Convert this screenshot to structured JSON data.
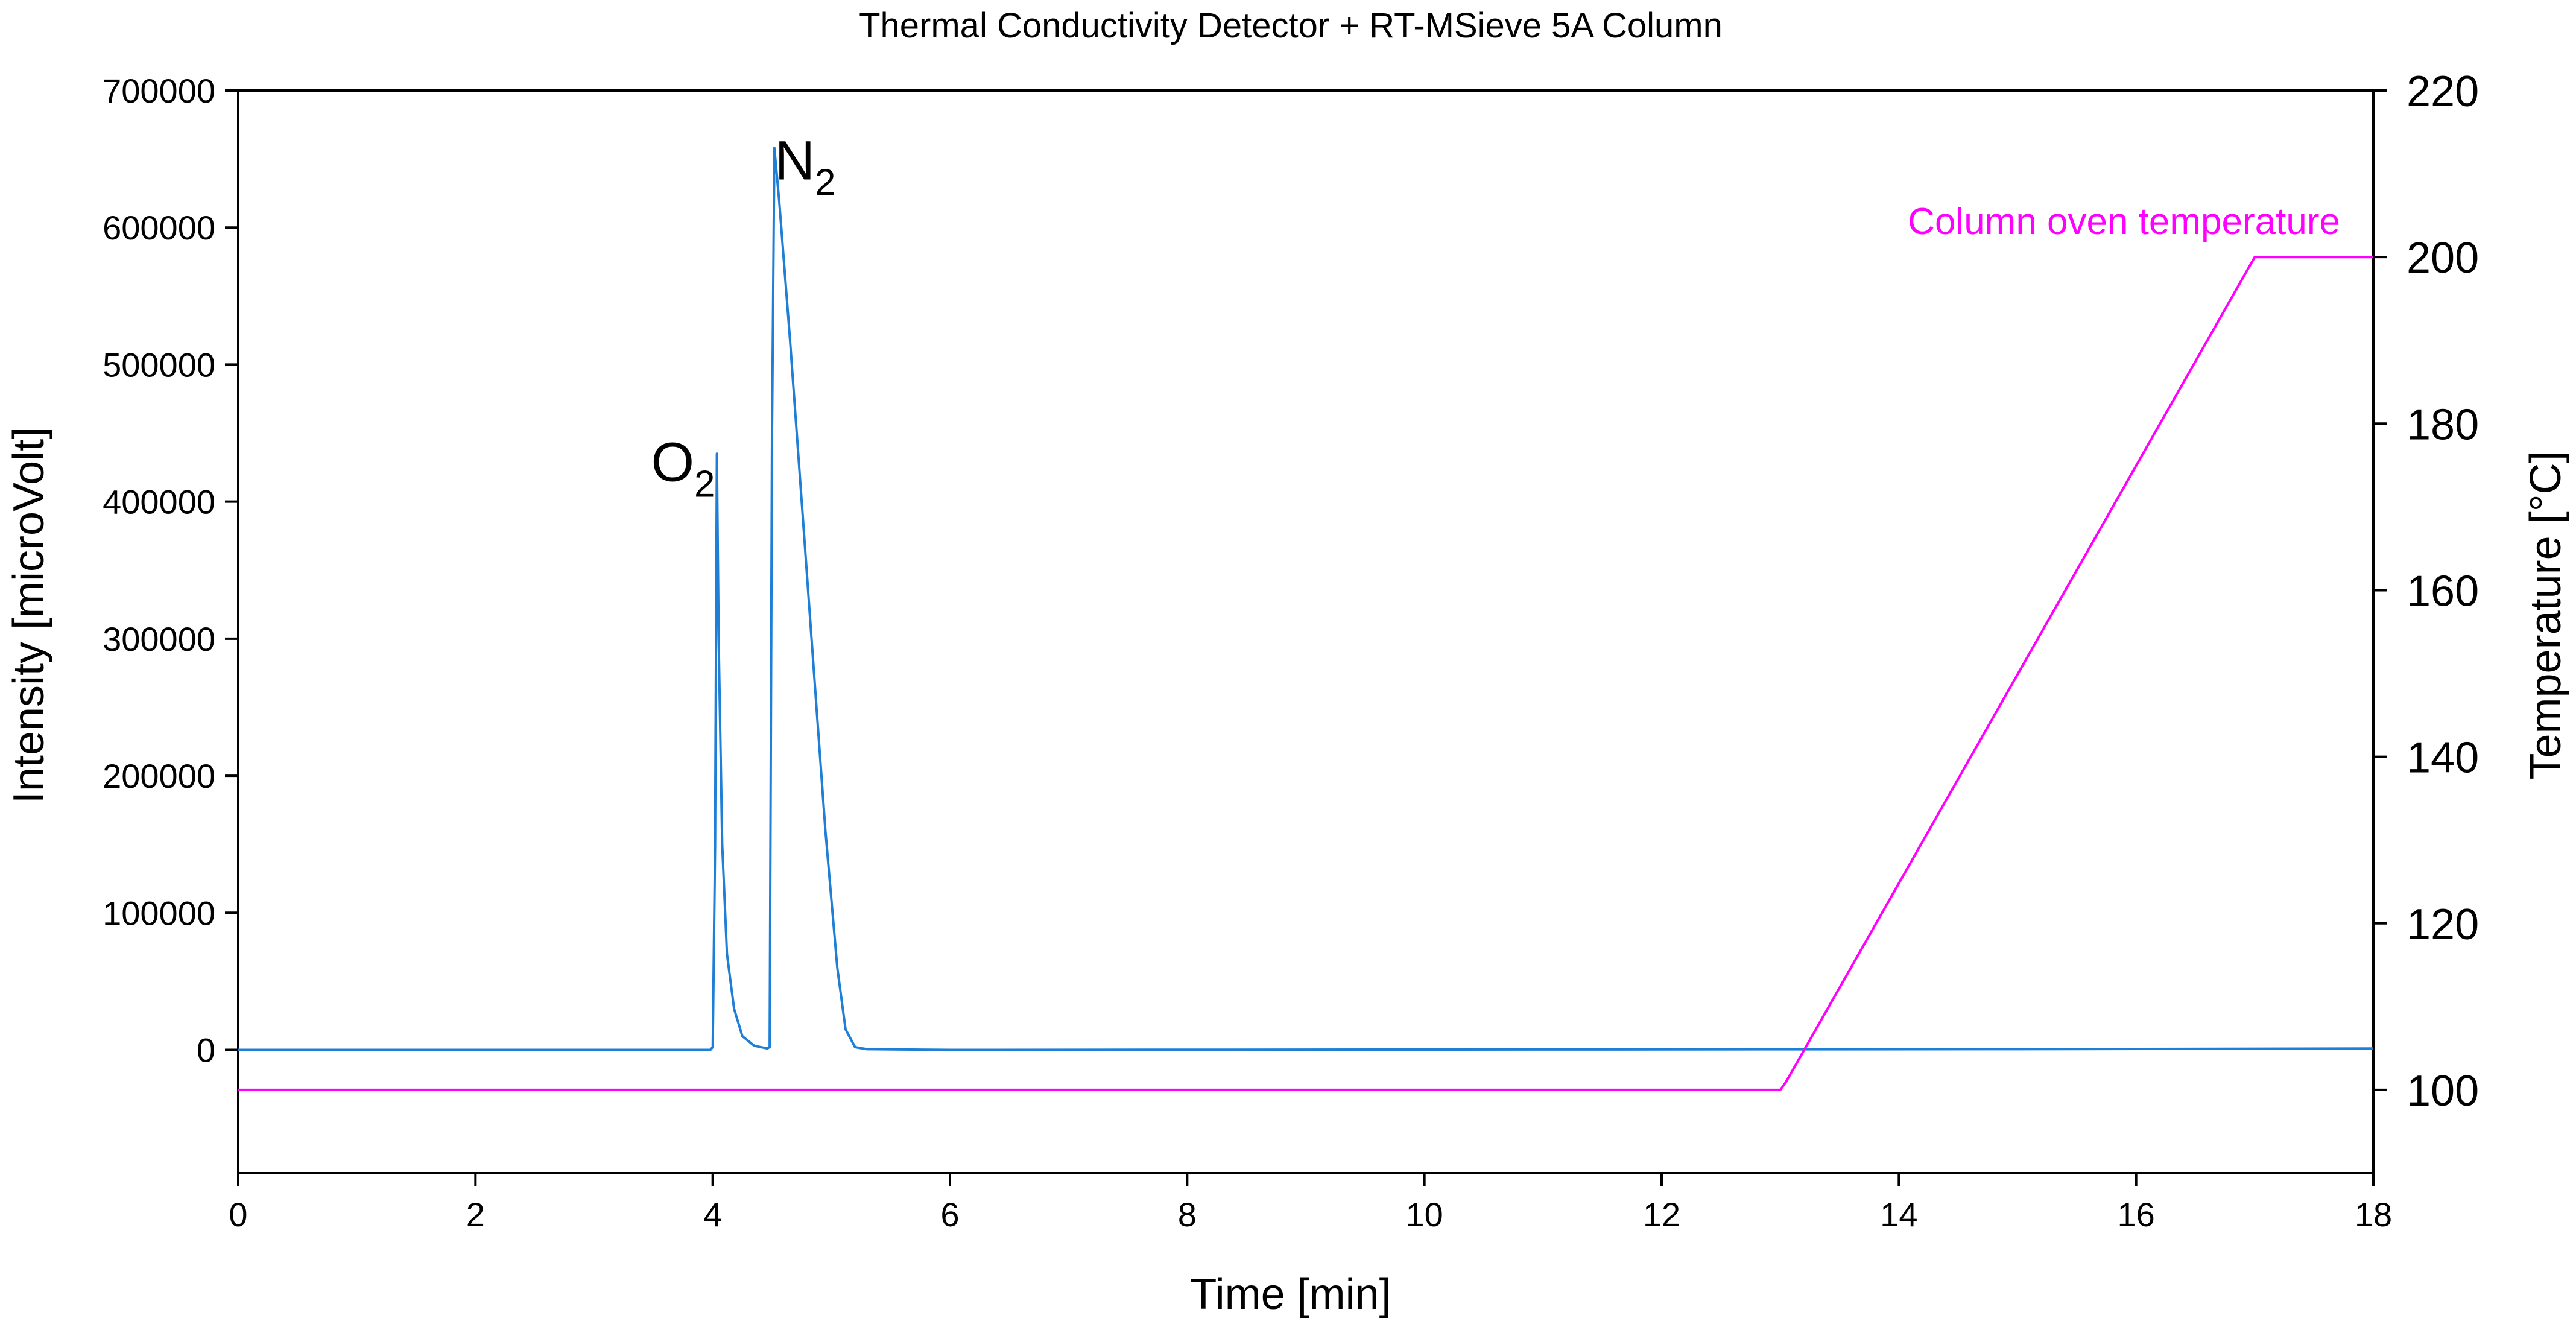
{
  "chart_data": {
    "type": "line",
    "title": "Thermal Conductivity Detector + RT-MSieve 5A Column",
    "xlabel": "Time [min]",
    "ylabel": "Intensity [microVolt]",
    "y2label": "Temperature [°C]",
    "xlim": [
      0,
      18
    ],
    "ylim": [
      -90000,
      700000
    ],
    "y2lim": [
      90,
      220
    ],
    "x_ticks": [
      "0",
      "2",
      "4",
      "6",
      "8",
      "10",
      "12",
      "14",
      "16",
      "18"
    ],
    "x_tick_values": [
      0,
      2,
      4,
      6,
      8,
      10,
      12,
      14,
      16,
      18
    ],
    "y_ticks": [
      "0",
      "100000",
      "200000",
      "300000",
      "400000",
      "500000",
      "600000",
      "700000"
    ],
    "y_tick_values": [
      0,
      100000,
      200000,
      300000,
      400000,
      500000,
      600000,
      700000
    ],
    "y2_ticks": [
      "100",
      "120",
      "140",
      "160",
      "180",
      "200",
      "220"
    ],
    "y2_tick_values": [
      100,
      120,
      140,
      160,
      180,
      200,
      220
    ],
    "grid": false,
    "series": [
      {
        "axis": "left",
        "color": "#1f7fd6",
        "points": [
          [
            0,
            0
          ],
          [
            3.98,
            0
          ],
          [
            4.0,
            2000
          ],
          [
            4.02,
            150000
          ],
          [
            4.035,
            435000
          ],
          [
            4.05,
            300000
          ],
          [
            4.08,
            150000
          ],
          [
            4.12,
            70000
          ],
          [
            4.18,
            30000
          ],
          [
            4.25,
            10000
          ],
          [
            4.35,
            3000
          ],
          [
            4.46,
            1000
          ],
          [
            4.48,
            2000
          ],
          [
            4.5,
            450000
          ],
          [
            4.52,
            658000
          ],
          [
            4.56,
            620000
          ],
          [
            4.65,
            520000
          ],
          [
            4.75,
            400000
          ],
          [
            4.85,
            280000
          ],
          [
            4.95,
            160000
          ],
          [
            5.05,
            60000
          ],
          [
            5.12,
            15000
          ],
          [
            5.2,
            2000
          ],
          [
            5.3,
            500
          ],
          [
            6.0,
            0
          ],
          [
            15.0,
            500
          ],
          [
            18.0,
            1000
          ]
        ]
      },
      {
        "name": "Column oven temperature",
        "axis": "right",
        "color": "#ff00ff",
        "points": [
          [
            0,
            100
          ],
          [
            13.0,
            100
          ],
          [
            13.05,
            101
          ],
          [
            17.0,
            200
          ],
          [
            18.0,
            200
          ]
        ]
      }
    ],
    "annotations": [
      {
        "base": "O",
        "sub": "2",
        "x": 3.75,
        "y": 415000
      },
      {
        "base": "N",
        "sub": "2",
        "x": 4.78,
        "y": 635000
      }
    ]
  }
}
